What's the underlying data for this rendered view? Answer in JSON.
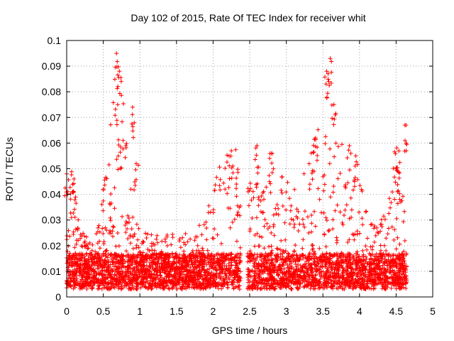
{
  "chart_data": {
    "type": "scatter",
    "title": "Day 102 of 2015, Rate Of TEC Index for receiver whit",
    "xlabel": "GPS time / hours",
    "ylabel": "ROTI / TECUs",
    "xlim": [
      0,
      5
    ],
    "ylim": [
      0,
      0.1
    ],
    "x_ticks": [
      "0",
      "0.5",
      "1",
      "1.5",
      "2",
      "2.5",
      "3",
      "3.5",
      "4",
      "4.5",
      "5"
    ],
    "y_ticks": [
      "0",
      "0.01",
      "0.02",
      "0.03",
      "0.04",
      "0.05",
      "0.06",
      "0.07",
      "0.08",
      "0.09",
      "0.1"
    ],
    "grid": true,
    "marker": "+",
    "color": "#ff0000",
    "point_count_approx": 4200,
    "data_extent": {
      "x_min": 0.0,
      "x_max": 4.65,
      "gap_x": [
        2.38,
        2.47
      ]
    },
    "peaks": [
      {
        "x": 0.0,
        "y": 0.048
      },
      {
        "x": 0.1,
        "y": 0.046
      },
      {
        "x": 0.68,
        "y": 0.095
      },
      {
        "x": 0.72,
        "y": 0.088
      },
      {
        "x": 0.9,
        "y": 0.074
      },
      {
        "x": 0.95,
        "y": 0.052
      },
      {
        "x": 2.25,
        "y": 0.057
      },
      {
        "x": 2.6,
        "y": 0.059
      },
      {
        "x": 2.8,
        "y": 0.056
      },
      {
        "x": 3.4,
        "y": 0.062
      },
      {
        "x": 3.55,
        "y": 0.088
      },
      {
        "x": 3.6,
        "y": 0.093
      },
      {
        "x": 3.65,
        "y": 0.075
      },
      {
        "x": 3.95,
        "y": 0.055
      },
      {
        "x": 4.5,
        "y": 0.05
      },
      {
        "x": 4.62,
        "y": 0.067
      }
    ]
  }
}
